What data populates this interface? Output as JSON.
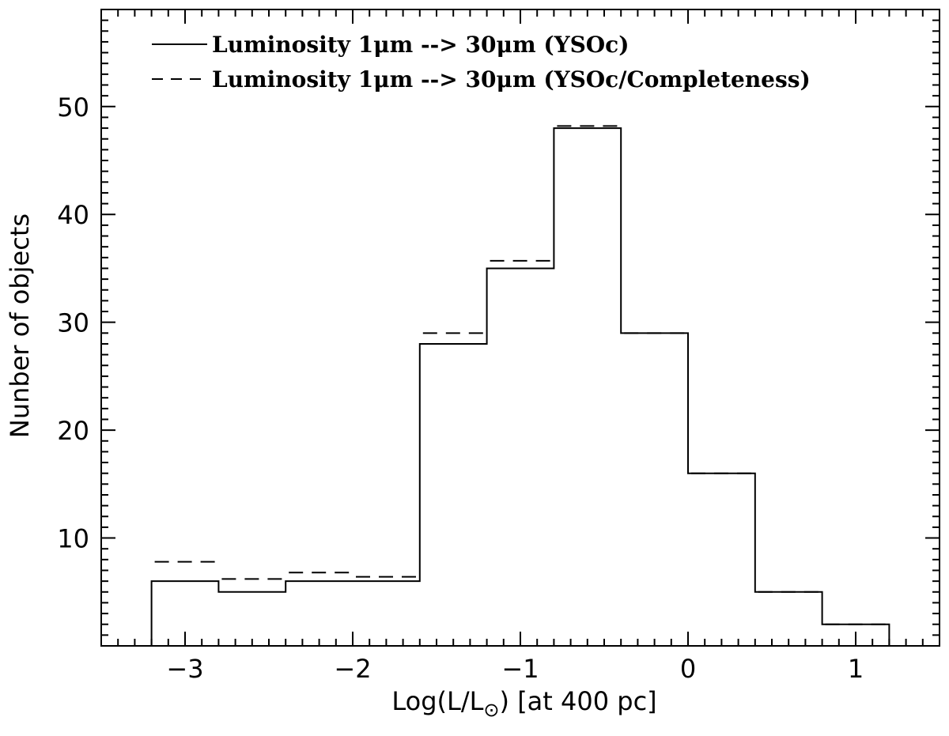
{
  "chart_data": {
    "type": "histogram",
    "xlabel": "Log(L/L⊙) [at 400 pc]",
    "ylabel": "Nunber of objects",
    "xlim": [
      -3.5,
      1.5
    ],
    "ylim": [
      0,
      59
    ],
    "x_ticks": [
      -3,
      -2,
      -1,
      0,
      1
    ],
    "x_tick_labels": [
      "−3",
      "−2",
      "−1",
      "0",
      "1"
    ],
    "y_ticks": [
      10,
      20,
      30,
      40,
      50
    ],
    "y_tick_labels": [
      "10",
      "20",
      "30",
      "40",
      "50"
    ],
    "bin_edges": [
      -3.2,
      -2.8,
      -2.4,
      -2.0,
      -1.6,
      -1.2,
      -0.8,
      -0.4,
      0.0,
      0.4,
      0.8,
      1.2
    ],
    "series": [
      {
        "name": "Luminosity 1μm --> 30μm (YSOc)",
        "line_style": "solid",
        "values": [
          6,
          5,
          6,
          6,
          28,
          35,
          48,
          29,
          16,
          5,
          2
        ]
      },
      {
        "name": "Luminosity 1μm --> 30μm (YSOc/Completeness)",
        "line_style": "dashed",
        "values": [
          7.8,
          6.2,
          6.8,
          6.4,
          29,
          35.7,
          48.2,
          29,
          16,
          5,
          2
        ]
      }
    ],
    "legend_position": "top-left",
    "grid": false
  }
}
